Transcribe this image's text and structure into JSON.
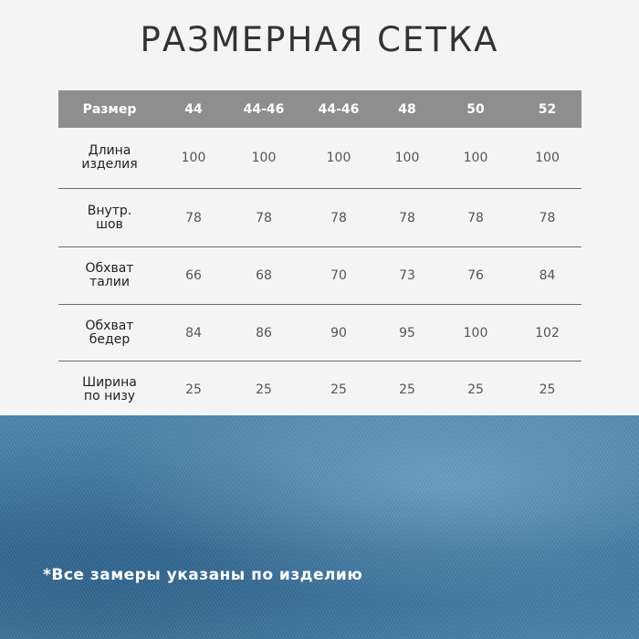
{
  "title": "РАЗМЕРНАЯ СЕТКА",
  "table": {
    "header": [
      "Размер",
      "44",
      "44-46",
      "44-46",
      "48",
      "50",
      "52"
    ],
    "rows": [
      {
        "label": [
          "Длина",
          "изделия"
        ],
        "values": [
          "100",
          "100",
          "100",
          "100",
          "100",
          "100"
        ]
      },
      {
        "label": [
          "Внутр.",
          "шов"
        ],
        "values": [
          "78",
          "78",
          "78",
          "78",
          "78",
          "78"
        ]
      },
      {
        "label": [
          "Обхват",
          "талии"
        ],
        "values": [
          "66",
          "68",
          "70",
          "73",
          "76",
          "84"
        ]
      },
      {
        "label": [
          "Обхват",
          "бедер"
        ],
        "values": [
          "84",
          "86",
          "90",
          "95",
          "100",
          "102"
        ]
      },
      {
        "label": [
          "Ширина",
          "по низу"
        ],
        "values": [
          "25",
          "25",
          "25",
          "25",
          "25",
          "25"
        ]
      }
    ]
  },
  "footnote": "*Все замеры указаны по изделию",
  "colors": {
    "header_bg": "#8e8e8e",
    "background": "#f4f4f4",
    "denim": "#4580a8"
  }
}
